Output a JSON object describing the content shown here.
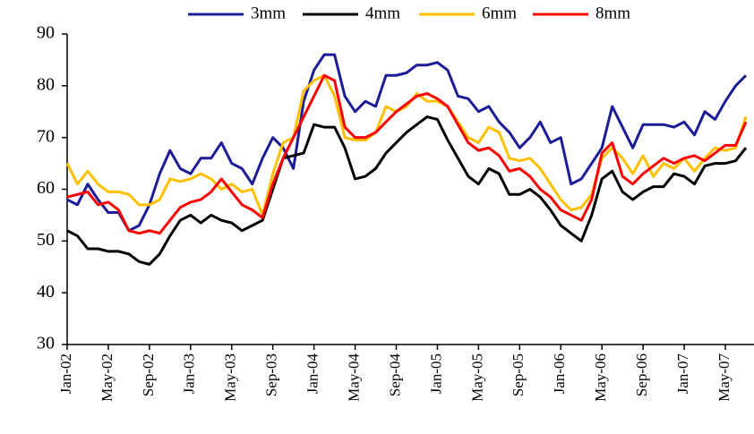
{
  "chart_data": {
    "type": "line",
    "categories": [
      "Jan-02",
      null,
      null,
      null,
      "May-02",
      null,
      null,
      null,
      "Sep-02",
      null,
      null,
      null,
      "Jan-03",
      null,
      null,
      null,
      "May-03",
      null,
      null,
      null,
      "Sep-03",
      null,
      null,
      null,
      "Jan-04",
      null,
      null,
      null,
      "May-04",
      null,
      null,
      null,
      "Sep-04",
      null,
      null,
      null,
      "Jan-05",
      null,
      null,
      null,
      "May-05",
      null,
      null,
      null,
      "Sep-05",
      null,
      null,
      null,
      "Jan-06",
      null,
      null,
      null,
      "May-06",
      null,
      null,
      null,
      "Sep-06",
      null,
      null,
      null,
      "Jan-07",
      null,
      null,
      null,
      "May-07",
      null,
      null
    ],
    "ylim": [
      30,
      90
    ],
    "yticks": [
      30,
      40,
      50,
      60,
      70,
      80,
      90
    ],
    "grid": false,
    "legend": "top",
    "series": [
      {
        "name": "3mm",
        "color": "#1c1c96",
        "values": [
          58,
          57,
          61,
          58,
          55.5,
          55.5,
          52,
          53,
          57,
          63,
          67.5,
          64,
          63,
          66,
          66,
          69,
          65,
          64,
          61,
          66,
          70,
          68,
          64,
          77,
          83,
          86,
          86,
          78,
          75,
          77,
          76,
          82,
          82,
          82.5,
          84,
          84,
          84.5,
          83,
          78,
          77.5,
          75,
          76,
          73,
          71,
          68,
          70,
          73,
          69,
          70,
          61,
          62,
          65,
          68,
          76,
          72,
          68,
          72.5,
          72.5,
          72.5,
          72,
          73,
          70.5,
          75,
          73.5,
          77,
          80,
          82
        ]
      },
      {
        "name": "4mm",
        "color": "#000000",
        "values": [
          52,
          51,
          48.5,
          48.5,
          48,
          48,
          47.5,
          46,
          45.5,
          47.5,
          51,
          54,
          55,
          53.5,
          55,
          54,
          53.5,
          52,
          53,
          54,
          60,
          66,
          66.5,
          67,
          72.5,
          72,
          72,
          68,
          62,
          62.5,
          64,
          67,
          69,
          71,
          72.5,
          74,
          73.5,
          69.5,
          66,
          62.5,
          61,
          64,
          63,
          59,
          59,
          60,
          58.5,
          56,
          53,
          51.5,
          50,
          55,
          62,
          63.5,
          59.5,
          58,
          59.5,
          60.5,
          60.5,
          63,
          62.5,
          61,
          64.5,
          65,
          65,
          65.5,
          68
        ]
      },
      {
        "name": "6mm",
        "color": "#ffc000",
        "values": [
          65,
          61,
          63.5,
          61,
          59.5,
          59.5,
          59,
          57,
          57,
          58,
          62,
          61.5,
          62,
          63,
          62,
          60,
          61,
          59.5,
          60,
          55,
          63,
          69,
          70,
          79,
          81,
          82,
          78,
          70,
          69.5,
          69.5,
          71,
          76,
          75,
          76,
          78.5,
          77,
          77,
          76,
          73,
          70,
          69,
          72,
          71,
          66,
          65.5,
          66,
          64,
          61,
          58,
          56,
          56.5,
          59,
          66,
          68,
          66,
          63,
          66.5,
          62.5,
          65,
          64,
          66,
          63.5,
          66,
          68,
          67.5,
          68,
          74
        ]
      },
      {
        "name": "8mm",
        "color": "#ff0000",
        "values": [
          58.5,
          59,
          59.5,
          57,
          57.5,
          56,
          52,
          51.5,
          52,
          51.5,
          54,
          56.5,
          57.5,
          58,
          59.5,
          62,
          59.5,
          57,
          56,
          54.5,
          61,
          66,
          70,
          74,
          78,
          82,
          81,
          72,
          70,
          70,
          71,
          73,
          75,
          76.5,
          78,
          78.5,
          77.5,
          76,
          72.5,
          69,
          67.5,
          68,
          66.5,
          63.5,
          64,
          62.5,
          60,
          58.5,
          56,
          55,
          54,
          58,
          67,
          69,
          62.5,
          61,
          63,
          64.5,
          66,
          65,
          66,
          66.5,
          65.5,
          67,
          68.5,
          68.5,
          73
        ]
      }
    ]
  }
}
